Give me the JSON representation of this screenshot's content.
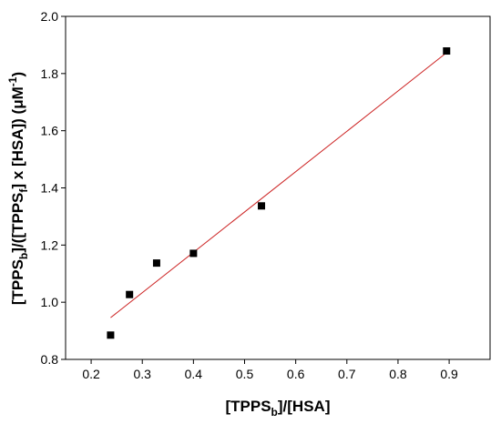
{
  "chart_data": {
    "type": "scatter",
    "title": "",
    "xlabel": "[TPPS_b]/[HSA]",
    "ylabel": "[TPPS_b]/([TPPS_f] x [HSA]) (μM^-1)",
    "xlabel_parts": {
      "a": "[TPPS",
      "sub": "b",
      "b": "]/[HSA]"
    },
    "ylabel_parts": {
      "a": "[TPPS",
      "sub1": "b",
      "b": "]/([TPPS",
      "sub2": "f",
      "c": "] x [HSA]) (μM",
      "sup": "-1",
      "d": ")"
    },
    "xlim": [
      0.15,
      0.98
    ],
    "ylim": [
      0.8,
      2.0
    ],
    "xticks": [
      "0.2",
      "0.3",
      "0.4",
      "0.5",
      "0.6",
      "0.7",
      "0.8",
      "0.9"
    ],
    "yticks": [
      "0.8",
      "1.0",
      "1.2",
      "1.4",
      "1.6",
      "1.8",
      "2.0"
    ],
    "points": [
      {
        "x": 0.238,
        "y": 0.885
      },
      {
        "x": 0.275,
        "y": 1.027
      },
      {
        "x": 0.328,
        "y": 1.137
      },
      {
        "x": 0.4,
        "y": 1.171
      },
      {
        "x": 0.533,
        "y": 1.337
      },
      {
        "x": 0.895,
        "y": 1.879
      }
    ],
    "fit_line": {
      "x": [
        0.238,
        0.895
      ],
      "y": [
        0.946,
        1.873
      ]
    },
    "grid": false,
    "legend": "none",
    "colors": {
      "marker": "#000000",
      "fit_line": "#cc2222",
      "axes": "#000000"
    }
  }
}
